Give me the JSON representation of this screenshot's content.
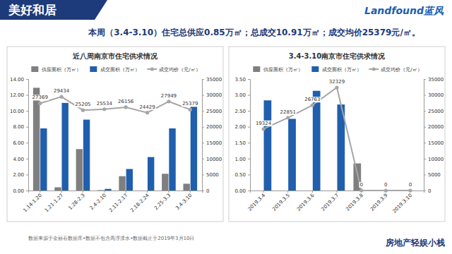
{
  "header": {
    "title": "美好和居",
    "logo": "Landfound蓝风",
    "headline": "本周（3.4-3.10）住宅总供应0.85万㎡；总成交10.91万㎡；成交均价25379元/㎡。"
  },
  "chart_data": [
    {
      "type": "bar",
      "title": "近八周南京市住宅供求情况",
      "categories": [
        "1.14-1.20",
        "1.21-1.27",
        "1.28-2.3",
        "2.4-2.10",
        "2.11-2.17",
        "2.18-2.24",
        "2.25-3.3",
        "3.4-3.10"
      ],
      "series": [
        {
          "name": "供应面积（万㎡）",
          "type": "bar",
          "color": "#7f7f7f",
          "values": [
            12.9,
            0.4,
            5.2,
            0.05,
            1.8,
            0,
            2.1,
            0.85
          ]
        },
        {
          "name": "成交面积（万㎡）",
          "type": "bar",
          "color": "#1f5fad",
          "values": [
            7.8,
            11.0,
            8.9,
            0.2,
            2.7,
            4.2,
            7.8,
            10.91
          ]
        },
        {
          "name": "成交均价（元/㎡）",
          "type": "line",
          "axis": "y2",
          "color": "#a6a6a6",
          "marker": "circle",
          "line_style": "solid",
          "data_labels": true,
          "values": [
            27369,
            29434,
            25205,
            25534,
            26156,
            24429,
            27949,
            25379
          ]
        }
      ],
      "ylim": [
        0,
        14
      ],
      "yticks": [
        {
          "value": 0,
          "label": "0.00"
        },
        {
          "value": 2,
          "label": "2.00"
        },
        {
          "value": 4,
          "label": "4.00"
        },
        {
          "value": 6,
          "label": "6.00"
        },
        {
          "value": 8,
          "label": "8.00"
        },
        {
          "value": 10,
          "label": "10.00"
        },
        {
          "value": 12,
          "label": "12.00"
        },
        {
          "value": 14,
          "label": "14.00"
        }
      ],
      "y2lim": [
        0,
        35000
      ],
      "y2ticks": [
        0,
        5000,
        10000,
        15000,
        20000,
        25000,
        30000,
        35000
      ],
      "legend": "top",
      "grid": false
    },
    {
      "type": "bar",
      "title": "3.4-3.10南京市住宅供求情况",
      "categories": [
        "2019.3.4",
        "2019.3.5",
        "2019.3.6",
        "2019.3.7",
        "2019.3.8",
        "2019.3.9",
        "2019.3.10"
      ],
      "series": [
        {
          "name": "供应面积（万㎡）",
          "type": "bar",
          "color": "#7f7f7f",
          "values": [
            0,
            0,
            0,
            0,
            0.85,
            0,
            0
          ]
        },
        {
          "name": "成交面积（万㎡）",
          "type": "bar",
          "color": "#1f5fad",
          "values": [
            2.83,
            2.25,
            3.13,
            2.7,
            0,
            0,
            0
          ]
        },
        {
          "name": "成交均价（元/㎡）",
          "type": "line",
          "axis": "y2",
          "color": "#a6a6a6",
          "marker": "circle",
          "line_style": "solid",
          "data_labels": true,
          "values": [
            19324,
            22851,
            26763,
            32329,
            0,
            0,
            0
          ]
        }
      ],
      "ylim": [
        0,
        3.5
      ],
      "yticks": [
        {
          "value": 0,
          "label": "0.00"
        },
        {
          "value": 0.5,
          "label": "0.50"
        },
        {
          "value": 1,
          "label": "1.00"
        },
        {
          "value": 1.5,
          "label": "1.50"
        },
        {
          "value": 2,
          "label": "2.00"
        },
        {
          "value": 2.5,
          "label": "2.50"
        },
        {
          "value": 3,
          "label": "3.00"
        },
        {
          "value": 3.5,
          "label": "3.50"
        }
      ],
      "y2lim": [
        0,
        35000
      ],
      "y2ticks": [
        0,
        5000,
        10000,
        15000,
        20000,
        25000,
        30000,
        35000
      ],
      "legend": "top",
      "grid": false
    }
  ],
  "footer": {
    "source": "数据来源于金丽石数据库•数据不包含高淳溧水•数据截止于2019年3月10日",
    "brand": "房地产轻娱小栈"
  }
}
